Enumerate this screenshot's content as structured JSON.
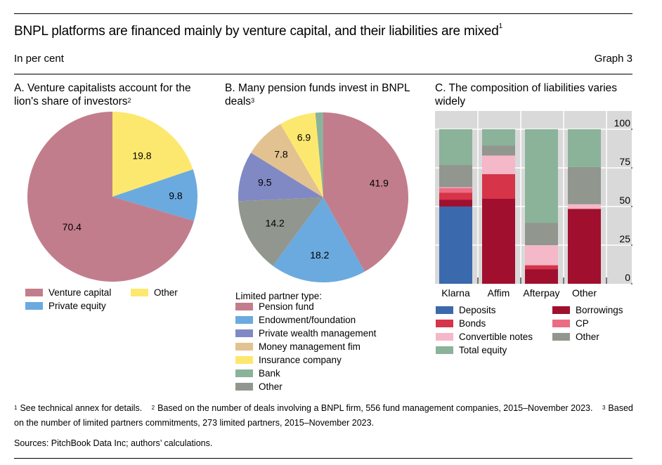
{
  "header": {
    "title": "BNPL platforms are financed mainly by venture capital, and their liabilities are mixed",
    "title_note": "1",
    "subtitle": "In per cent",
    "graph_number": "Graph 3"
  },
  "colors": {
    "venture_capital": "#c27d8c",
    "private_equity": "#6aaadf",
    "other_yellow": "#fde86f",
    "pension_fund": "#c27d8c",
    "endowment": "#6aaadf",
    "private_wealth": "#8089c4",
    "money_management": "#e2c290",
    "insurance": "#fde86f",
    "bank": "#8ab39a",
    "other_grey": "#91968e",
    "deposits": "#3b69ad",
    "borrowings": "#a0102e",
    "bonds": "#d63449",
    "cp": "#ec6c83",
    "convertible_notes": "#f4b8c9",
    "total_equity": "#8ab39a",
    "plot_bg": "#d9d9d9"
  },
  "chart_data": [
    {
      "type": "pie",
      "panel": "A",
      "title": "A. Venture capitalists account for the lion's share of investors",
      "title_note": "2",
      "start": "12 o'clock, clockwise",
      "slices": [
        {
          "name": "Other",
          "value": 19.8,
          "label": "19.8",
          "color_key": "other_yellow"
        },
        {
          "name": "Private equity",
          "value": 9.8,
          "label": "9.8",
          "color_key": "private_equity"
        },
        {
          "name": "Venture capital",
          "value": 70.4,
          "label": "70.4",
          "color_key": "venture_capital"
        }
      ],
      "legend": [
        {
          "name": "Venture capital",
          "color_key": "venture_capital"
        },
        {
          "name": "Other",
          "color_key": "other_yellow"
        },
        {
          "name": "Private equity",
          "color_key": "private_equity"
        }
      ],
      "legend_position": "bottom"
    },
    {
      "type": "pie",
      "panel": "B",
      "title": "B. Many pension funds invest in BNPL deals",
      "title_note": "3",
      "start": "12 o'clock, clockwise",
      "slices": [
        {
          "name": "Pension fund",
          "value": 41.9,
          "label": "41.9",
          "color_key": "pension_fund"
        },
        {
          "name": "Endowment/foundation",
          "value": 18.2,
          "label": "18.2",
          "color_key": "endowment"
        },
        {
          "name": "Other",
          "value": 14.2,
          "label": "14.2",
          "color_key": "other_grey"
        },
        {
          "name": "Private wealth management",
          "value": 9.5,
          "label": "9.5",
          "color_key": "private_wealth"
        },
        {
          "name": "Money management fim",
          "value": 7.8,
          "label": "7.8",
          "color_key": "money_management"
        },
        {
          "name": "Insurance company",
          "value": 6.9,
          "label": "6.9",
          "color_key": "insurance"
        },
        {
          "name": "Bank",
          "value": 1.5,
          "label": "",
          "color_key": "bank"
        }
      ],
      "legend_title": "Limited partner type:",
      "legend": [
        {
          "name": "Pension fund",
          "color_key": "pension_fund"
        },
        {
          "name": "Endowment/foundation",
          "color_key": "endowment"
        },
        {
          "name": "Private wealth management",
          "color_key": "private_wealth"
        },
        {
          "name": "Money management fim",
          "color_key": "money_management"
        },
        {
          "name": "Insurance company",
          "color_key": "insurance"
        },
        {
          "name": "Bank",
          "color_key": "bank"
        },
        {
          "name": "Other",
          "color_key": "other_grey"
        }
      ],
      "legend_position": "bottom"
    },
    {
      "type": "bar",
      "stacked": true,
      "panel": "C",
      "title": "C. The composition of liabilities varies widely",
      "categories": [
        "Klarna",
        "Affim",
        "Afterpay",
        "Other"
      ],
      "ylim": [
        0,
        100
      ],
      "yticks": [
        0,
        25,
        50,
        75,
        100
      ],
      "yaxis_side": "right",
      "grid": true,
      "series": [
        {
          "name": "Deposits",
          "color_key": "deposits",
          "values": [
            50,
            0,
            0,
            0
          ]
        },
        {
          "name": "Borrowings",
          "color_key": "borrowings",
          "values": [
            4.5,
            55,
            9.5,
            48.5
          ]
        },
        {
          "name": "Bonds",
          "color_key": "bonds",
          "values": [
            4.5,
            16,
            2.5,
            0
          ]
        },
        {
          "name": "CP",
          "color_key": "cp",
          "values": [
            3,
            0,
            0,
            0
          ]
        },
        {
          "name": "Convertible notes",
          "color_key": "convertible_notes",
          "values": [
            0.5,
            12,
            13,
            3
          ]
        },
        {
          "name": "Other",
          "color_key": "other_grey",
          "values": [
            14.5,
            6.5,
            14.5,
            24
          ]
        },
        {
          "name": "Total equity",
          "color_key": "total_equity",
          "values": [
            23,
            10.5,
            60.5,
            24.5
          ]
        }
      ],
      "legend": [
        {
          "name": "Deposits",
          "color_key": "deposits"
        },
        {
          "name": "Borrowings",
          "color_key": "borrowings"
        },
        {
          "name": "Bonds",
          "color_key": "bonds"
        },
        {
          "name": "CP",
          "color_key": "cp"
        },
        {
          "name": "Convertible notes",
          "color_key": "convertible_notes"
        },
        {
          "name": "Other",
          "color_key": "other_grey"
        },
        {
          "name": "Total equity",
          "color_key": "total_equity"
        }
      ],
      "legend_position": "bottom"
    }
  ],
  "footnotes": [
    {
      "mark": "1",
      "text": "See technical annex for details."
    },
    {
      "mark": "2",
      "text": "Based on the number of deals involving a BNPL firm, 556 fund management companies, 2015–November 2023."
    },
    {
      "mark": "3",
      "text": "Based on the number of limited partners commitments, 273 limited partners, 2015–November 2023."
    }
  ],
  "sources": "Sources: PitchBook Data Inc; authors’ calculations."
}
